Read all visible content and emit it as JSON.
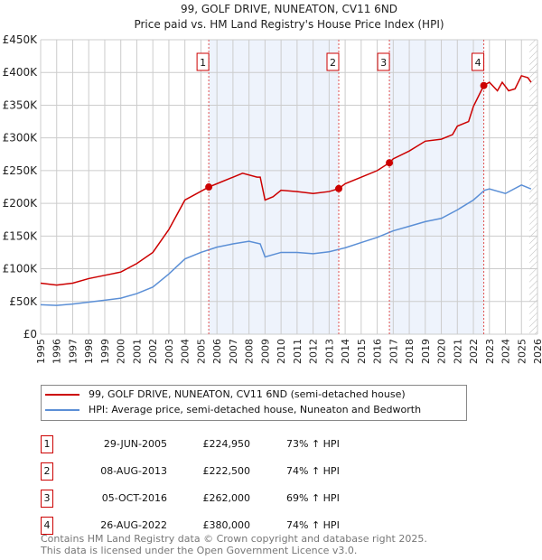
{
  "chart_data": {
    "type": "line",
    "title": "99, GOLF DRIVE, NUNEATON, CV11 6ND",
    "subtitle": "Price paid vs. HM Land Registry's House Price Index (HPI)",
    "xlim": [
      1995,
      2026
    ],
    "ylim": [
      0,
      450000
    ],
    "yticks": [
      {
        "v": 0,
        "label": "£0"
      },
      {
        "v": 50000,
        "label": "£50K"
      },
      {
        "v": 100000,
        "label": "£100K"
      },
      {
        "v": 150000,
        "label": "£150K"
      },
      {
        "v": 200000,
        "label": "£200K"
      },
      {
        "v": 250000,
        "label": "£250K"
      },
      {
        "v": 300000,
        "label": "£300K"
      },
      {
        "v": 350000,
        "label": "£350K"
      },
      {
        "v": 400000,
        "label": "£400K"
      },
      {
        "v": 450000,
        "label": "£450K"
      }
    ],
    "xticks": [
      "1995",
      "1996",
      "1997",
      "1998",
      "1999",
      "2000",
      "2001",
      "2002",
      "2003",
      "2004",
      "2005",
      "2006",
      "2007",
      "2008",
      "2009",
      "2010",
      "2011",
      "2012",
      "2013",
      "2014",
      "2015",
      "2016",
      "2017",
      "2018",
      "2019",
      "2020",
      "2021",
      "2022",
      "2023",
      "2024",
      "2025",
      "2026"
    ],
    "grid": true,
    "series": [
      {
        "name": "99, GOLF DRIVE, NUNEATON, CV11 6ND (semi-detached house)",
        "color": "#cc0000",
        "x": [
          1995,
          1996,
          1997,
          1998,
          1999,
          2000,
          2001,
          2002,
          2003,
          2004,
          2005.49,
          2006,
          2007,
          2007.6,
          2008.5,
          2008.7,
          2009,
          2009.5,
          2010,
          2011,
          2012,
          2013,
          2013.6,
          2014,
          2015,
          2016,
          2016.76,
          2017,
          2018,
          2019,
          2020,
          2020.7,
          2021,
          2021.7,
          2022,
          2022.65,
          2023,
          2023.5,
          2023.8,
          2024.2,
          2024.6,
          2025,
          2025.4,
          2025.6
        ],
        "y": [
          78000,
          75000,
          78000,
          85000,
          90000,
          95000,
          108000,
          125000,
          160000,
          205000,
          224950,
          230000,
          240000,
          246000,
          240000,
          240000,
          205000,
          210000,
          220000,
          218000,
          215000,
          218000,
          222500,
          230000,
          240000,
          250000,
          262000,
          268000,
          280000,
          295000,
          298000,
          305000,
          318000,
          325000,
          348000,
          380000,
          385000,
          372000,
          385000,
          372000,
          375000,
          395000,
          392000,
          385000
        ]
      },
      {
        "name": "HPI: Average price, semi-detached house, Nuneaton and Bedworth",
        "color": "#5b8fd6",
        "x": [
          1995,
          1996,
          1997,
          1998,
          1999,
          2000,
          2001,
          2002,
          2003,
          2004,
          2005,
          2006,
          2007,
          2008,
          2008.7,
          2009,
          2010,
          2011,
          2012,
          2013,
          2014,
          2015,
          2016,
          2017,
          2018,
          2019,
          2020,
          2021,
          2022,
          2022.7,
          2023,
          2024,
          2025,
          2025.6
        ],
        "y": [
          45000,
          44000,
          46000,
          49000,
          52000,
          55000,
          62000,
          72000,
          92000,
          115000,
          125000,
          133000,
          138000,
          142000,
          138000,
          118000,
          125000,
          125000,
          123000,
          126000,
          132000,
          140000,
          148000,
          158000,
          165000,
          172000,
          177000,
          190000,
          205000,
          220000,
          222000,
          215000,
          228000,
          222000
        ]
      }
    ],
    "sales": [
      {
        "n": "1",
        "x": 2005.49,
        "date": "29-JUN-2005",
        "price": "£224,950",
        "value": 224950,
        "hpi": "73% ↑ HPI"
      },
      {
        "n": "2",
        "x": 2013.6,
        "date": "08-AUG-2013",
        "price": "£222,500",
        "value": 222500,
        "hpi": "74% ↑ HPI"
      },
      {
        "n": "3",
        "x": 2016.76,
        "date": "05-OCT-2016",
        "price": "£262,000",
        "value": 262000,
        "hpi": "69% ↑ HPI"
      },
      {
        "n": "4",
        "x": 2022.65,
        "date": "26-AUG-2022",
        "price": "£380,000",
        "value": 380000,
        "hpi": "74% ↑ HPI"
      }
    ],
    "shaded": [
      [
        2005.49,
        2013.6
      ],
      [
        2016.76,
        2022.65
      ]
    ],
    "hatched_from": 2025.0
  },
  "footer": {
    "line1": "Contains HM Land Registry data © Crown copyright and database right 2025.",
    "line2": "This data is licensed under the Open Government Licence v3.0."
  }
}
